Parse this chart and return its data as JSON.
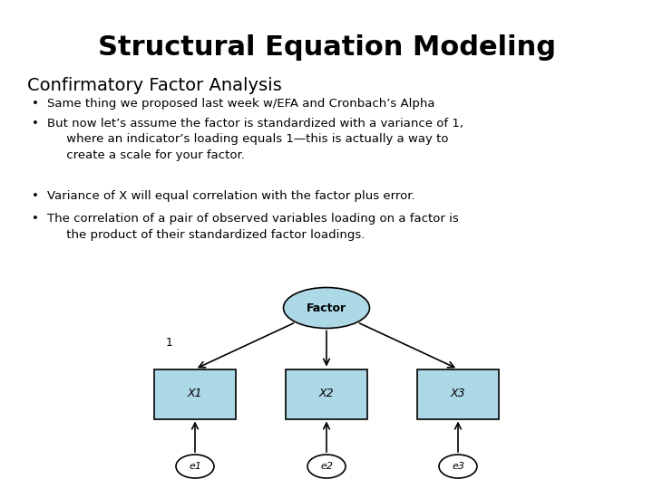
{
  "title": "Structural Equation Modeling",
  "subtitle": "Confirmatory Factor Analysis",
  "bullets": [
    "Same thing we proposed last week w/EFA and Cronbach’s Alpha",
    "But now let’s assume the factor is standardized with a variance of 1,\n     where an indicator’s loading equals 1—this is actually a way to\n     create a scale for your factor.",
    "Variance of X will equal correlation with the factor plus error.",
    "The correlation of a pair of observed variables loading on a factor is\n     the product of their standardized factor loadings."
  ],
  "bg_color": "#ffffff",
  "text_color": "#000000",
  "box_fill": "#add8e6",
  "ellipse_fill": "#add8e6",
  "factor_label": "Factor",
  "x_labels": [
    "X1",
    "X2",
    "X3"
  ],
  "e_labels": [
    "e1",
    "e2",
    "e3"
  ],
  "arrow_label": "1",
  "title_fontsize": 22,
  "subtitle_fontsize": 14,
  "bullet_fontsize": 9.5,
  "diagram_fontsize": 9,
  "e_fontsize": 8
}
